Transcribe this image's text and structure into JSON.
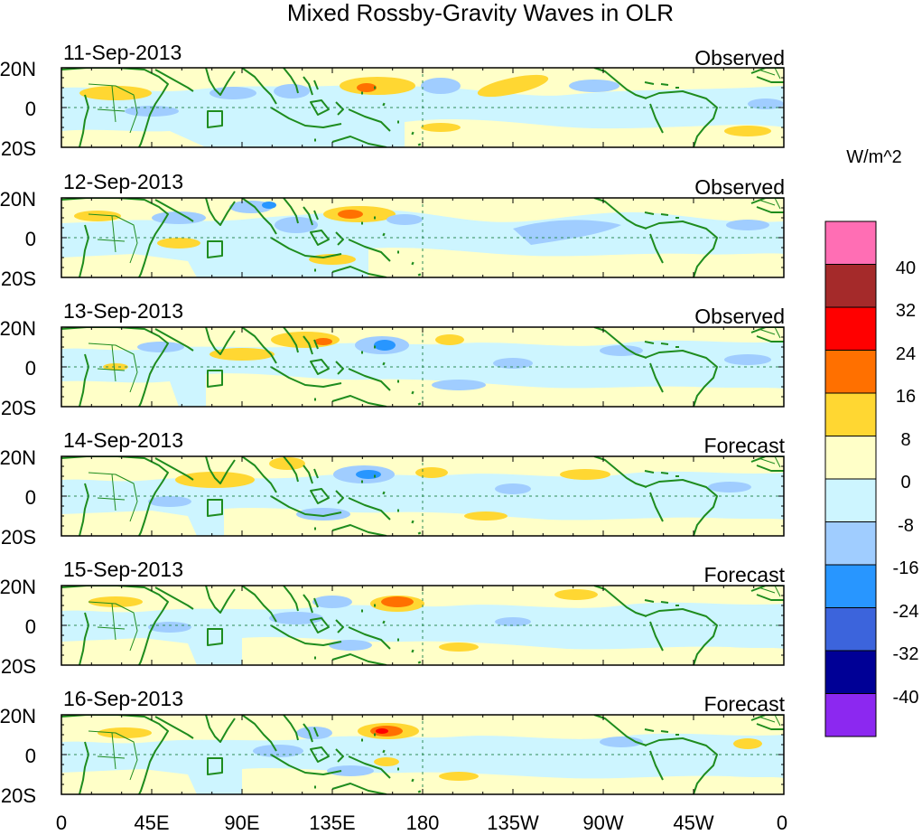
{
  "title": "Mixed Rossby-Gravity Waves in OLR",
  "lat_labels": [
    "20N",
    "0",
    "20S"
  ],
  "lon_labels": [
    "0",
    "45E",
    "90E",
    "135E",
    "180",
    "135W",
    "90W",
    "45W",
    "0"
  ],
  "panels": [
    {
      "date": "11-Sep-2013",
      "status": "Observed"
    },
    {
      "date": "12-Sep-2013",
      "status": "Observed"
    },
    {
      "date": "13-Sep-2013",
      "status": "Observed"
    },
    {
      "date": "14-Sep-2013",
      "status": "Forecast"
    },
    {
      "date": "15-Sep-2013",
      "status": "Forecast"
    },
    {
      "date": "16-Sep-2013",
      "status": "Forecast"
    }
  ],
  "colorbar": {
    "units": "W/m^2",
    "labels": [
      "40",
      "32",
      "24",
      "16",
      "8",
      "0",
      "-8",
      "-16",
      "-24",
      "-32",
      "-40"
    ],
    "colors": [
      "#ff6eb4",
      "#a52a2a",
      "#ff0000",
      "#ff7000",
      "#ffd732",
      "#ffffc8",
      "#cdf5ff",
      "#a0cdff",
      "#2896ff",
      "#3c64dc",
      "#000096",
      "#8c28f0"
    ]
  },
  "colors": {
    "land": "#1e8c1e",
    "equator_line": "#2e8b57"
  }
}
